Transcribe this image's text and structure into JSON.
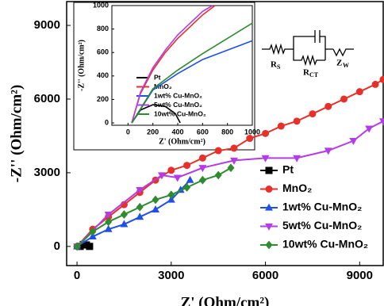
{
  "chart_data": [
    {
      "type": "line",
      "x_label": "Z' (Ohm/cm²)",
      "y_label": "-Z'' (Ohm/cm²)",
      "xlim": [
        -330,
        9750
      ],
      "ylim": [
        -780,
        9970
      ],
      "xticks": [
        0,
        3000,
        6000,
        9000
      ],
      "yticks": [
        0,
        3000,
        6000,
        9000
      ],
      "legend": "lower right",
      "series": [
        {
          "name": "Pt",
          "color": "#000000",
          "marker": "square",
          "x": [
            100,
            200,
            300,
            400
          ],
          "values": [
            0,
            80,
            60,
            0
          ]
        },
        {
          "name": "MnO₂",
          "color": "#e8302a",
          "marker": "circle",
          "x": [
            0,
            500,
            1000,
            1500,
            2000,
            2500,
            3000,
            3500,
            4000,
            4500,
            5000,
            5500,
            6000,
            6500,
            7000,
            7500,
            8000,
            8500,
            9000,
            9500,
            9750
          ],
          "values": [
            0,
            700,
            1200,
            1700,
            2200,
            2700,
            3100,
            3300,
            3600,
            3900,
            4000,
            4400,
            4600,
            4900,
            5100,
            5400,
            5700,
            6000,
            6300,
            6600,
            6800
          ]
        },
        {
          "name": "1wt% Cu-MnO₂",
          "color": "#2050e8",
          "marker": "triangle",
          "x": [
            0,
            500,
            1000,
            1500,
            2000,
            2500,
            3000,
            3300,
            3600
          ],
          "values": [
            0,
            400,
            700,
            900,
            1200,
            1500,
            1900,
            2300,
            2700
          ]
        },
        {
          "name": "5wt% Cu-MnO₂",
          "color": "#b43ce8",
          "marker": "triangle-down",
          "x": [
            0,
            1000,
            2000,
            2700,
            3200,
            4000,
            5000,
            6000,
            7000,
            8000,
            8800,
            9300,
            9750
          ],
          "values": [
            0,
            1300,
            2300,
            2900,
            2800,
            3200,
            3500,
            3600,
            3600,
            3900,
            4300,
            4800,
            5100
          ]
        },
        {
          "name": "10wt% Cu-MnO₂",
          "color": "#2e8b2e",
          "marker": "diamond",
          "x": [
            0,
            500,
            1000,
            1500,
            2000,
            2500,
            3000,
            3500,
            4000,
            4500,
            4900
          ],
          "values": [
            0,
            600,
            1000,
            1300,
            1600,
            1900,
            2100,
            2400,
            2700,
            2900,
            3200
          ]
        }
      ]
    },
    {
      "type": "line",
      "x_label": "Z' (Ohm/cm²)",
      "y_label": "-Z'' (Ohm/cm²)",
      "xlim": [
        -130,
        1000
      ],
      "ylim": [
        -20,
        1000
      ],
      "xticks": [
        0,
        200,
        400,
        600,
        800,
        1000
      ],
      "yticks": [
        0,
        200,
        400,
        600,
        800,
        1000
      ],
      "legend": "lower center",
      "series": [
        {
          "name": "Pt",
          "color": "#000000",
          "x": [
            30,
            100,
            200,
            300,
            380,
            420
          ],
          "values": [
            0,
            110,
            155,
            140,
            80,
            0
          ]
        },
        {
          "name": "MnO₂",
          "color": "#e8302a",
          "x": [
            30,
            100,
            200,
            300,
            400,
            500,
            600,
            700
          ],
          "values": [
            0,
            250,
            450,
            600,
            720,
            820,
            920,
            1000
          ]
        },
        {
          "name": "1wt% Cu-MnO₂",
          "color": "#2050e8",
          "x": [
            30,
            200,
            400,
            600,
            800,
            1000
          ],
          "values": [
            0,
            280,
            420,
            540,
            620,
            700
          ]
        },
        {
          "name": "5wt% Cu-MnO₂",
          "color": "#b43ce8",
          "x": [
            30,
            100,
            200,
            300,
            400,
            500,
            600,
            680
          ],
          "values": [
            0,
            260,
            470,
            620,
            750,
            850,
            950,
            1000
          ]
        },
        {
          "name": "10wt% Cu-MnO₂",
          "color": "#2e8b2e",
          "x": [
            30,
            200,
            400,
            600,
            800,
            1000
          ],
          "values": [
            0,
            290,
            450,
            590,
            720,
            850
          ]
        }
      ]
    }
  ],
  "circuit": {
    "labels": [
      {
        "main": "R",
        "sub": "S"
      },
      {
        "main": "R",
        "sub": "CT"
      },
      {
        "main": "Z",
        "sub": "W"
      }
    ]
  }
}
